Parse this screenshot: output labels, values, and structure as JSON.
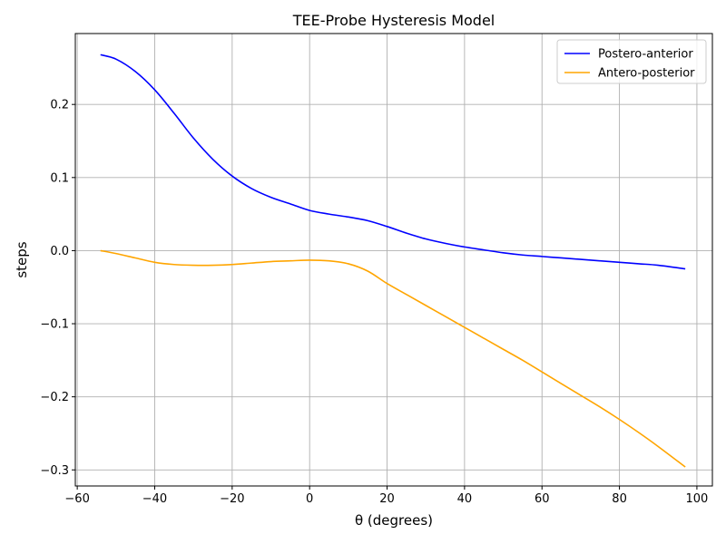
{
  "chart_data": {
    "type": "line",
    "title": "TEE-Probe Hysteresis Model",
    "xlabel": "θ (degrees)",
    "ylabel": "steps",
    "xlim": [
      -60.5,
      104
    ],
    "ylim": [
      -0.322,
      0.297
    ],
    "xticks": [
      -60,
      -40,
      -20,
      0,
      20,
      40,
      60,
      80,
      100
    ],
    "xtick_labels": [
      "−60",
      "−40",
      "−20",
      "0",
      "20",
      "40",
      "60",
      "80",
      "100"
    ],
    "yticks": [
      -0.3,
      -0.2,
      -0.1,
      0.0,
      0.1,
      0.2
    ],
    "ytick_labels": [
      "−0.3",
      "−0.2",
      "−0.1",
      "0.0",
      "0.1",
      "0.2"
    ],
    "grid": true,
    "legend_position": "top-right",
    "series": [
      {
        "name": "Postero-anterior",
        "color": "#0000ff",
        "x": [
          -54,
          -50,
          -45,
          -40,
          -35,
          -30,
          -25,
          -20,
          -15,
          -10,
          -5,
          0,
          5,
          10,
          15,
          20,
          25,
          30,
          35,
          40,
          45,
          50,
          55,
          60,
          65,
          70,
          75,
          80,
          85,
          90,
          97
        ],
        "y": [
          0.268,
          0.262,
          0.245,
          0.22,
          0.188,
          0.154,
          0.125,
          0.102,
          0.085,
          0.073,
          0.064,
          0.055,
          0.05,
          0.046,
          0.041,
          0.033,
          0.024,
          0.016,
          0.01,
          0.005,
          0.001,
          -0.003,
          -0.006,
          -0.008,
          -0.01,
          -0.012,
          -0.014,
          -0.016,
          -0.018,
          -0.02,
          -0.025
        ]
      },
      {
        "name": "Antero-posterior",
        "color": "#ffa500",
        "x": [
          -54,
          -50,
          -45,
          -40,
          -35,
          -30,
          -25,
          -20,
          -15,
          -10,
          -5,
          0,
          5,
          10,
          15,
          20,
          25,
          30,
          35,
          40,
          45,
          50,
          55,
          60,
          65,
          70,
          75,
          80,
          85,
          90,
          97
        ],
        "y": [
          0.0,
          -0.004,
          -0.01,
          -0.016,
          -0.019,
          -0.02,
          -0.02,
          -0.019,
          -0.017,
          -0.015,
          -0.014,
          -0.013,
          -0.014,
          -0.018,
          -0.028,
          -0.045,
          -0.06,
          -0.075,
          -0.09,
          -0.105,
          -0.12,
          -0.135,
          -0.15,
          -0.166,
          -0.182,
          -0.198,
          -0.214,
          -0.231,
          -0.249,
          -0.268,
          -0.296
        ]
      }
    ]
  }
}
